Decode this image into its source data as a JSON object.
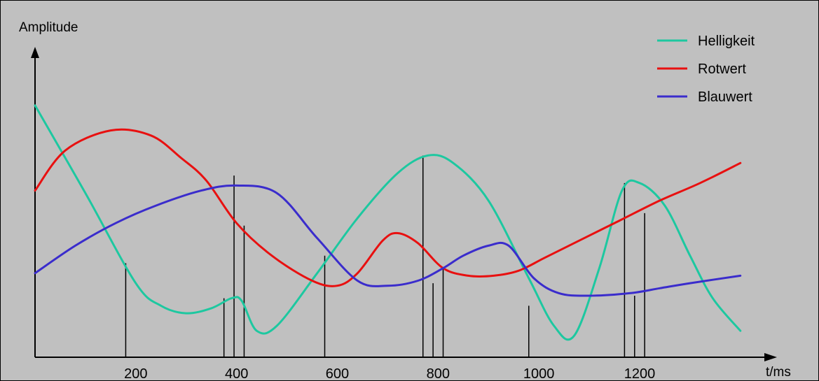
{
  "chart_data": {
    "type": "line",
    "ylabel": "Amplitude",
    "xlabel": "t/ms",
    "xlim": [
      0,
      1410
    ],
    "ylim": [
      0,
      1
    ],
    "grid": false,
    "legend_placement": "top-right",
    "x_ticks": [
      200,
      400,
      600,
      800,
      1000,
      1200
    ],
    "series": [
      {
        "name": "Helligkeit",
        "color": "#1dc8a0",
        "x": [
          0,
          100,
          200,
          250,
          300,
          350,
          390,
          410,
          440,
          480,
          560,
          640,
          720,
          780,
          830,
          900,
          980,
          1030,
          1070,
          1120,
          1165,
          1200,
          1250,
          1300,
          1345,
          1400
        ],
        "y": [
          1.0,
          0.65,
          0.29,
          0.2,
          0.17,
          0.19,
          0.23,
          0.22,
          0.1,
          0.12,
          0.33,
          0.55,
          0.73,
          0.8,
          0.77,
          0.62,
          0.31,
          0.12,
          0.08,
          0.35,
          0.66,
          0.69,
          0.6,
          0.4,
          0.23,
          0.1
        ]
      },
      {
        "name": "Rotwert",
        "color": "#e81010",
        "x": [
          0,
          60,
          150,
          230,
          290,
          340,
          400,
          470,
          550,
          600,
          640,
          690,
          720,
          760,
          810,
          860,
          910,
          960,
          1010,
          1080,
          1160,
          1240,
          1320,
          1400
        ],
        "y": [
          0.66,
          0.82,
          0.9,
          0.88,
          0.79,
          0.7,
          0.53,
          0.4,
          0.3,
          0.28,
          0.33,
          0.46,
          0.49,
          0.45,
          0.35,
          0.32,
          0.32,
          0.34,
          0.39,
          0.46,
          0.54,
          0.62,
          0.69,
          0.77
        ]
      },
      {
        "name": "Blauwert",
        "color": "#3a2ccc",
        "x": [
          0,
          80,
          160,
          240,
          330,
          400,
          480,
          560,
          640,
          700,
          760,
          810,
          850,
          900,
          940,
          990,
          1040,
          1100,
          1180,
          1240,
          1300,
          1400
        ],
        "y": [
          0.33,
          0.44,
          0.53,
          0.6,
          0.66,
          0.68,
          0.65,
          0.47,
          0.3,
          0.28,
          0.3,
          0.35,
          0.4,
          0.44,
          0.44,
          0.31,
          0.25,
          0.24,
          0.25,
          0.27,
          0.29,
          0.32
        ]
      }
    ],
    "markers": {
      "x": [
        180,
        375,
        395,
        415,
        575,
        770,
        790,
        810,
        980,
        1170,
        1190,
        1210
      ],
      "y": [
        0.37,
        0.23,
        0.72,
        0.52,
        0.4,
        0.8,
        0.29,
        0.35,
        0.2,
        0.69,
        0.24,
        0.57
      ]
    }
  }
}
